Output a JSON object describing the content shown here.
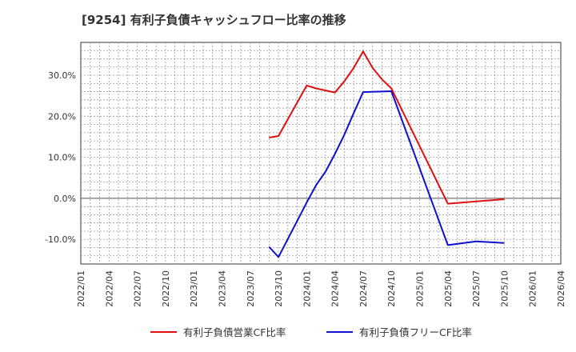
{
  "chart_data": {
    "type": "line",
    "title": "[9254]  有利子負債キャッシュフロー比率の推移",
    "xlabel": "",
    "ylabel": "",
    "ylim": [
      -16,
      38
    ],
    "y_ticks": [
      -10,
      0,
      10,
      20,
      30
    ],
    "y_tick_labels": [
      "-10.0%",
      "0.0%",
      "10.0%",
      "20.0%",
      "30.0%"
    ],
    "x_ticks": [
      "2022/01",
      "2022/04",
      "2022/07",
      "2022/10",
      "2023/01",
      "2023/04",
      "2023/07",
      "2023/10",
      "2024/01",
      "2024/04",
      "2024/07",
      "2024/10",
      "2025/01",
      "2025/04",
      "2025/07",
      "2025/10",
      "2026/01",
      "2026/04"
    ],
    "grid": true,
    "legend_position": "bottom",
    "series": [
      {
        "name": "有利子負債営業CF比率",
        "color": "#e01010",
        "x": [
          "2023/09",
          "2023/10",
          "2024/01",
          "2024/02",
          "2024/04",
          "2024/05",
          "2024/06",
          "2024/07",
          "2024/08",
          "2024/09",
          "2024/10",
          "2025/04",
          "2025/10"
        ],
        "values": [
          14.8,
          15.2,
          27.5,
          26.8,
          25.8,
          28.5,
          31.8,
          35.8,
          31.8,
          29.0,
          26.8,
          -1.3,
          -0.2
        ]
      },
      {
        "name": "有利子負債フリーCF比率",
        "color": "#1010d0",
        "x": [
          "2023/09",
          "2023/10",
          "2024/01",
          "2024/02",
          "2024/03",
          "2024/04",
          "2024/05",
          "2024/06",
          "2024/07",
          "2024/10",
          "2025/04",
          "2025/07",
          "2025/10"
        ],
        "values": [
          -11.8,
          -14.3,
          -1.0,
          3.2,
          6.5,
          10.8,
          15.5,
          20.8,
          25.9,
          26.1,
          -11.4,
          -10.5,
          -10.9
        ]
      }
    ]
  }
}
